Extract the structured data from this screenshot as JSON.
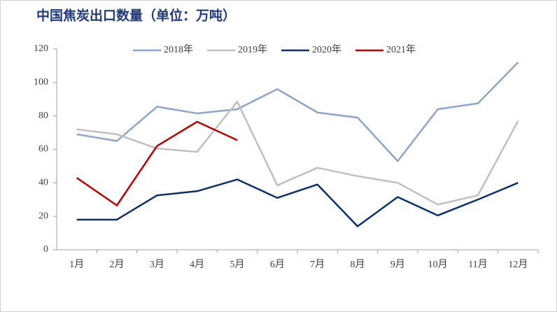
{
  "chart_data": {
    "type": "line",
    "title": "中国焦炭出口数量（单位：万吨）",
    "categories": [
      "1月",
      "2月",
      "3月",
      "4月",
      "5月",
      "6月",
      "7月",
      "8月",
      "9月",
      "10月",
      "11月",
      "12月"
    ],
    "series": [
      {
        "name": "2018年",
        "color": "#8ea5c8",
        "values": [
          69,
          65,
          85.5,
          81.5,
          84,
          96,
          82,
          79,
          53,
          84,
          87.5,
          112
        ]
      },
      {
        "name": "2019年",
        "color": "#c0c0c0",
        "values": [
          72,
          69,
          60.5,
          58.5,
          88.5,
          38.5,
          49,
          44,
          40,
          27,
          32.5,
          77
        ]
      },
      {
        "name": "2020年",
        "color": "#0b2f6e",
        "values": [
          18,
          18,
          32.5,
          35,
          42,
          31,
          39,
          14,
          31.5,
          20.5,
          30,
          40
        ]
      },
      {
        "name": "2021年",
        "color": "#c00000",
        "values": [
          43,
          26.5,
          62,
          76.5,
          65.5,
          null,
          null,
          null,
          null,
          null,
          null,
          null
        ]
      }
    ],
    "ylim": [
      0,
      120
    ],
    "yticks": [
      0,
      20,
      40,
      60,
      80,
      100,
      120
    ],
    "grid": false,
    "legend": "top"
  }
}
